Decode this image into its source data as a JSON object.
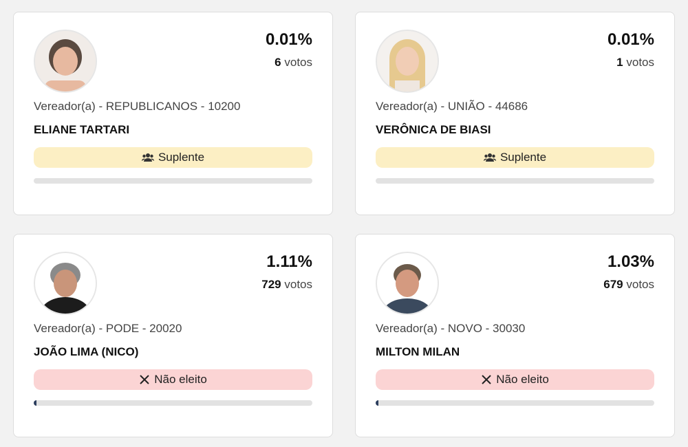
{
  "cards": [
    {
      "percent": 0.01,
      "percent_label": "0.01%",
      "votes": 6,
      "votes_unit": "votos",
      "role": "Vereador(a) - REPUBLICANOS - 10200",
      "name": "ELIANE TARTARI",
      "status": "Suplente"
    },
    {
      "percent": 0.01,
      "percent_label": "0.01%",
      "votes": 1,
      "votes_unit": "votos",
      "role": "Vereador(a) - UNIÃO - 44686",
      "name": "VERÔNICA DE BIASI",
      "status": "Suplente"
    },
    {
      "percent": 1.11,
      "percent_label": "1.11%",
      "votes": 729,
      "votes_unit": "votos",
      "role": "Vereador(a) - PODE - 20020",
      "name": "JOÃO LIMA (NICO)",
      "status": "Não eleito"
    },
    {
      "percent": 1.03,
      "percent_label": "1.03%",
      "votes": 679,
      "votes_unit": "votos",
      "role": "Vereador(a) - NOVO - 30030",
      "name": "MILTON MILAN",
      "status": "Não eleito"
    }
  ]
}
